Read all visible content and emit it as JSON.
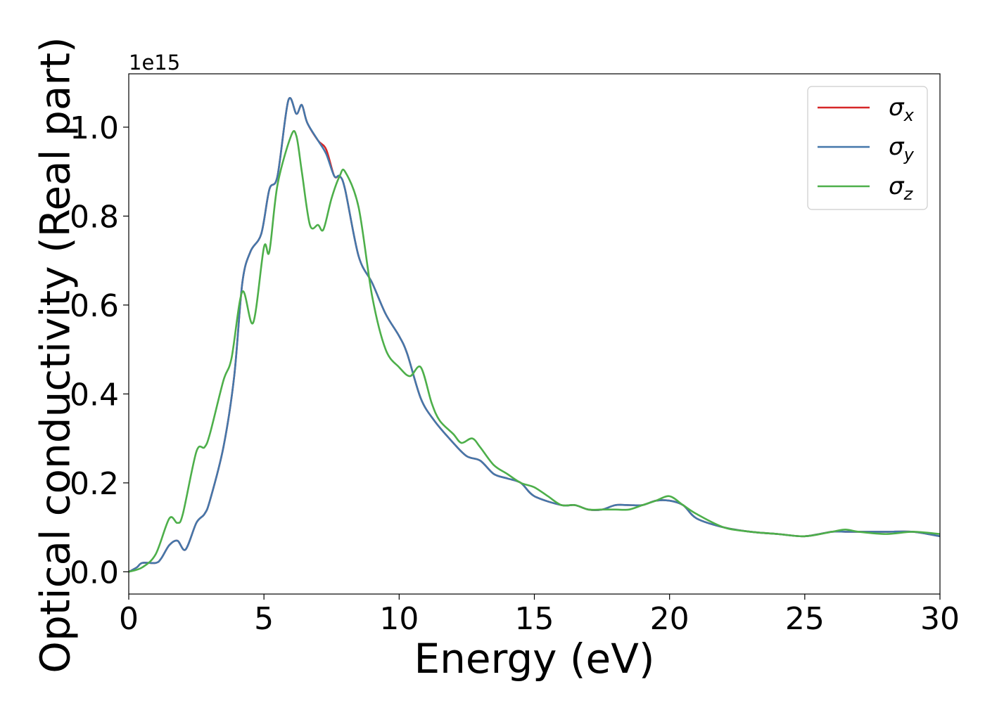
{
  "chart_data": {
    "type": "line",
    "xlabel": "Energy (eV)",
    "ylabel": "Optical conductivity (Real part)",
    "y_offset_label": "1e15",
    "xlim": [
      0,
      30
    ],
    "ylim": [
      -0.05,
      1.12
    ],
    "xticks": [
      0,
      5,
      10,
      15,
      20,
      25,
      30
    ],
    "yticks": [
      0.0,
      0.2,
      0.4,
      0.6,
      0.8,
      1.0
    ],
    "xtick_labels": [
      "0",
      "5",
      "10",
      "15",
      "20",
      "25",
      "30"
    ],
    "ytick_labels": [
      "0.0",
      "0.2",
      "0.4",
      "0.6",
      "0.8",
      "1.0"
    ],
    "grid": false,
    "legend_position": "top-right",
    "series": [
      {
        "name": "σx",
        "symbol": "σ",
        "subscript": "x",
        "color": "#d62728",
        "x": [
          0,
          0.3,
          0.5,
          1.0,
          1.2,
          1.5,
          1.8,
          2.1,
          2.5,
          2.8,
          3.0,
          3.5,
          3.9,
          4.2,
          4.5,
          4.9,
          5.2,
          5.5,
          5.9,
          6.2,
          6.4,
          6.6,
          7.0,
          7.3,
          7.6,
          7.8,
          8.0,
          8.5,
          9.0,
          9.5,
          10.0,
          10.3,
          10.8,
          11.3,
          12.0,
          12.5,
          13.0,
          13.5,
          14.0,
          14.5,
          15.0,
          16.0,
          16.5,
          17.0,
          17.5,
          18.0,
          18.5,
          19.0,
          19.5,
          20.0,
          20.5,
          21.0,
          22.0,
          23.0,
          24.0,
          25.0,
          26.0,
          26.5,
          27.0,
          28.0,
          29.0,
          30.0
        ],
        "y": [
          0.0,
          0.01,
          0.02,
          0.02,
          0.03,
          0.06,
          0.07,
          0.05,
          0.11,
          0.13,
          0.16,
          0.28,
          0.44,
          0.65,
          0.72,
          0.76,
          0.86,
          0.89,
          1.06,
          1.03,
          1.05,
          1.01,
          0.97,
          0.95,
          0.89,
          0.89,
          0.86,
          0.71,
          0.65,
          0.58,
          0.53,
          0.49,
          0.39,
          0.34,
          0.29,
          0.26,
          0.25,
          0.22,
          0.21,
          0.2,
          0.17,
          0.15,
          0.15,
          0.14,
          0.14,
          0.15,
          0.15,
          0.15,
          0.16,
          0.16,
          0.15,
          0.12,
          0.1,
          0.09,
          0.085,
          0.08,
          0.09,
          0.09,
          0.09,
          0.09,
          0.09,
          0.08
        ]
      },
      {
        "name": "σy",
        "symbol": "σ",
        "subscript": "y",
        "color": "#4477aa",
        "x": [
          0,
          0.3,
          0.5,
          1.0,
          1.2,
          1.5,
          1.8,
          2.1,
          2.5,
          2.8,
          3.0,
          3.5,
          3.9,
          4.2,
          4.5,
          4.9,
          5.2,
          5.5,
          5.9,
          6.2,
          6.4,
          6.6,
          7.0,
          7.3,
          7.6,
          7.8,
          8.0,
          8.5,
          9.0,
          9.5,
          10.0,
          10.3,
          10.8,
          11.3,
          12.0,
          12.5,
          13.0,
          13.5,
          14.0,
          14.5,
          15.0,
          16.0,
          16.5,
          17.0,
          17.5,
          18.0,
          18.5,
          19.0,
          19.5,
          20.0,
          20.5,
          21.0,
          22.0,
          23.0,
          24.0,
          25.0,
          26.0,
          26.5,
          27.0,
          28.0,
          29.0,
          30.0
        ],
        "y": [
          0.0,
          0.01,
          0.02,
          0.02,
          0.03,
          0.06,
          0.07,
          0.05,
          0.11,
          0.13,
          0.16,
          0.28,
          0.44,
          0.65,
          0.72,
          0.76,
          0.86,
          0.89,
          1.06,
          1.03,
          1.05,
          1.01,
          0.97,
          0.94,
          0.89,
          0.89,
          0.86,
          0.71,
          0.65,
          0.58,
          0.53,
          0.49,
          0.39,
          0.34,
          0.29,
          0.26,
          0.25,
          0.22,
          0.21,
          0.2,
          0.17,
          0.15,
          0.15,
          0.14,
          0.14,
          0.15,
          0.15,
          0.15,
          0.16,
          0.16,
          0.15,
          0.12,
          0.1,
          0.09,
          0.085,
          0.08,
          0.09,
          0.09,
          0.09,
          0.09,
          0.09,
          0.08
        ]
      },
      {
        "name": "σz",
        "symbol": "σ",
        "subscript": "z",
        "color": "#4daf4a",
        "x": [
          0,
          0.5,
          1.0,
          1.5,
          1.8,
          2.0,
          2.5,
          2.8,
          3.0,
          3.5,
          3.8,
          4.2,
          4.6,
          5.0,
          5.2,
          5.5,
          6.0,
          6.2,
          6.4,
          6.7,
          7.0,
          7.2,
          7.5,
          7.8,
          8.0,
          8.5,
          9.0,
          9.5,
          10.0,
          10.4,
          10.8,
          11.2,
          11.5,
          12.0,
          12.3,
          12.7,
          13.0,
          13.5,
          14.0,
          14.5,
          15.0,
          15.5,
          16.0,
          16.5,
          17.0,
          17.5,
          18.0,
          18.5,
          19.0,
          19.5,
          20.0,
          20.5,
          21.0,
          22.0,
          23.0,
          24.0,
          25.0,
          26.0,
          26.5,
          27.0,
          28.0,
          29.0,
          30.0
        ],
        "y": [
          0.0,
          0.01,
          0.04,
          0.12,
          0.11,
          0.13,
          0.27,
          0.28,
          0.31,
          0.43,
          0.48,
          0.63,
          0.56,
          0.73,
          0.72,
          0.87,
          0.98,
          0.98,
          0.9,
          0.78,
          0.78,
          0.77,
          0.84,
          0.89,
          0.9,
          0.82,
          0.62,
          0.5,
          0.46,
          0.44,
          0.46,
          0.38,
          0.34,
          0.31,
          0.29,
          0.3,
          0.28,
          0.24,
          0.22,
          0.2,
          0.19,
          0.17,
          0.15,
          0.15,
          0.14,
          0.14,
          0.14,
          0.14,
          0.15,
          0.16,
          0.17,
          0.15,
          0.13,
          0.1,
          0.09,
          0.085,
          0.08,
          0.09,
          0.095,
          0.09,
          0.085,
          0.09,
          0.085
        ]
      }
    ]
  }
}
